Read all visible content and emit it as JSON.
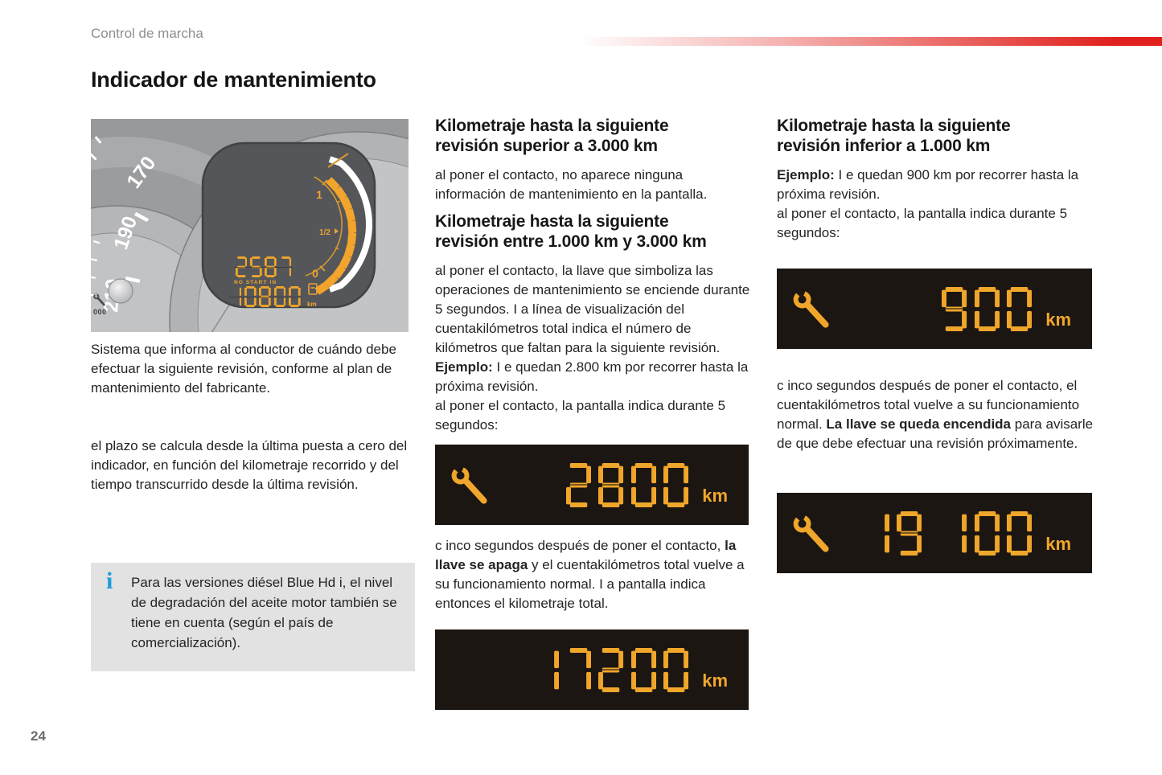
{
  "page": {
    "eyebrow": "Control de marcha",
    "title": "Indicador de mantenimiento",
    "page_number": "24"
  },
  "colors": {
    "accent_red": "#E0201C",
    "amber": "#F0A62B",
    "lcd_background": "#1B1612",
    "info_box_background": "#E2E2E2",
    "info_icon_blue": "#1E9CD7"
  },
  "cluster": {
    "dial_numbers": [
      "170",
      "190",
      "210"
    ],
    "fuel_full": "1",
    "fuel_half": "1/2",
    "fuel_empty": "0",
    "lcd_service": "2587",
    "lcd_warning": "NO START IN",
    "lcd_odometer": "10800",
    "lcd_unit": "km",
    "trip_reset": "000"
  },
  "left": {
    "info_icon_glyph": "i",
    "para1": "Sistema que informa al conductor de cuándo debe efectuar la siguiente revisión, conforme al plan de mantenimiento del fabricante.",
    "para2": "el plazo se calcula desde la última puesta a cero del indicador, en función del kilometraje recorrido y del tiempo transcurrido desde la última revisión.",
    "info_note": "Para las versiones diésel Blue Hd i, el nivel de degradación del aceite motor también se tiene en cuenta (según el país de comercialización)."
  },
  "middle": {
    "heading1": "Kilometraje hasta la siguiente\nrevisión superior a 3.000 km",
    "para1": "al poner el contacto, no aparece ninguna información de mantenimiento en la pantalla.",
    "heading2": "Kilometraje hasta la siguiente\nrevisión entre 1.000 km y 3.000 km",
    "para2": "al poner el contacto, la llave que simboliza las operaciones de mantenimiento se enciende durante 5 segundos. I a línea de visualización del cuentakilómetros total indica el número de kilómetros que faltan para la siguiente revisión.",
    "example_label": "Ejemplo:",
    "example_text": " I e quedan 2.800 km por recorrer hasta la próxima revisión.",
    "para3": "al poner el contacto, la pantalla indica durante 5 segundos:",
    "para4_pre": "c inco segundos después de poner el contacto, ",
    "para4_bold": "la llave se apaga",
    "para4_post": " y el cuentakilómetros total vuelve a su funcionamiento normal. I a pantalla indica entonces el kilometraje total."
  },
  "right": {
    "heading1": "Kilometraje hasta la siguiente\nrevisión inferior a 1.000 km",
    "example_label": "Ejemplo:",
    "example_text": " I e quedan 900 km por recorrer hasta la próxima revisión.",
    "para1": "al poner el contacto, la pantalla indica durante 5 segundos:",
    "para2_pre": "c inco segundos después de poner el contacto, el cuentakilómetros total vuelve a su funcionamiento normal. ",
    "para2_bold": "La llave se queda encendida",
    "para2_post": " para avisarle de que debe efectuar una revisión próximamente."
  },
  "displays": {
    "d2800": {
      "value": "2800",
      "unit": "km"
    },
    "d17200": {
      "value": "17200",
      "unit": "km"
    },
    "d900": {
      "value": "900",
      "unit": "km"
    },
    "d19100": {
      "value": "19 100",
      "unit": "km"
    }
  }
}
